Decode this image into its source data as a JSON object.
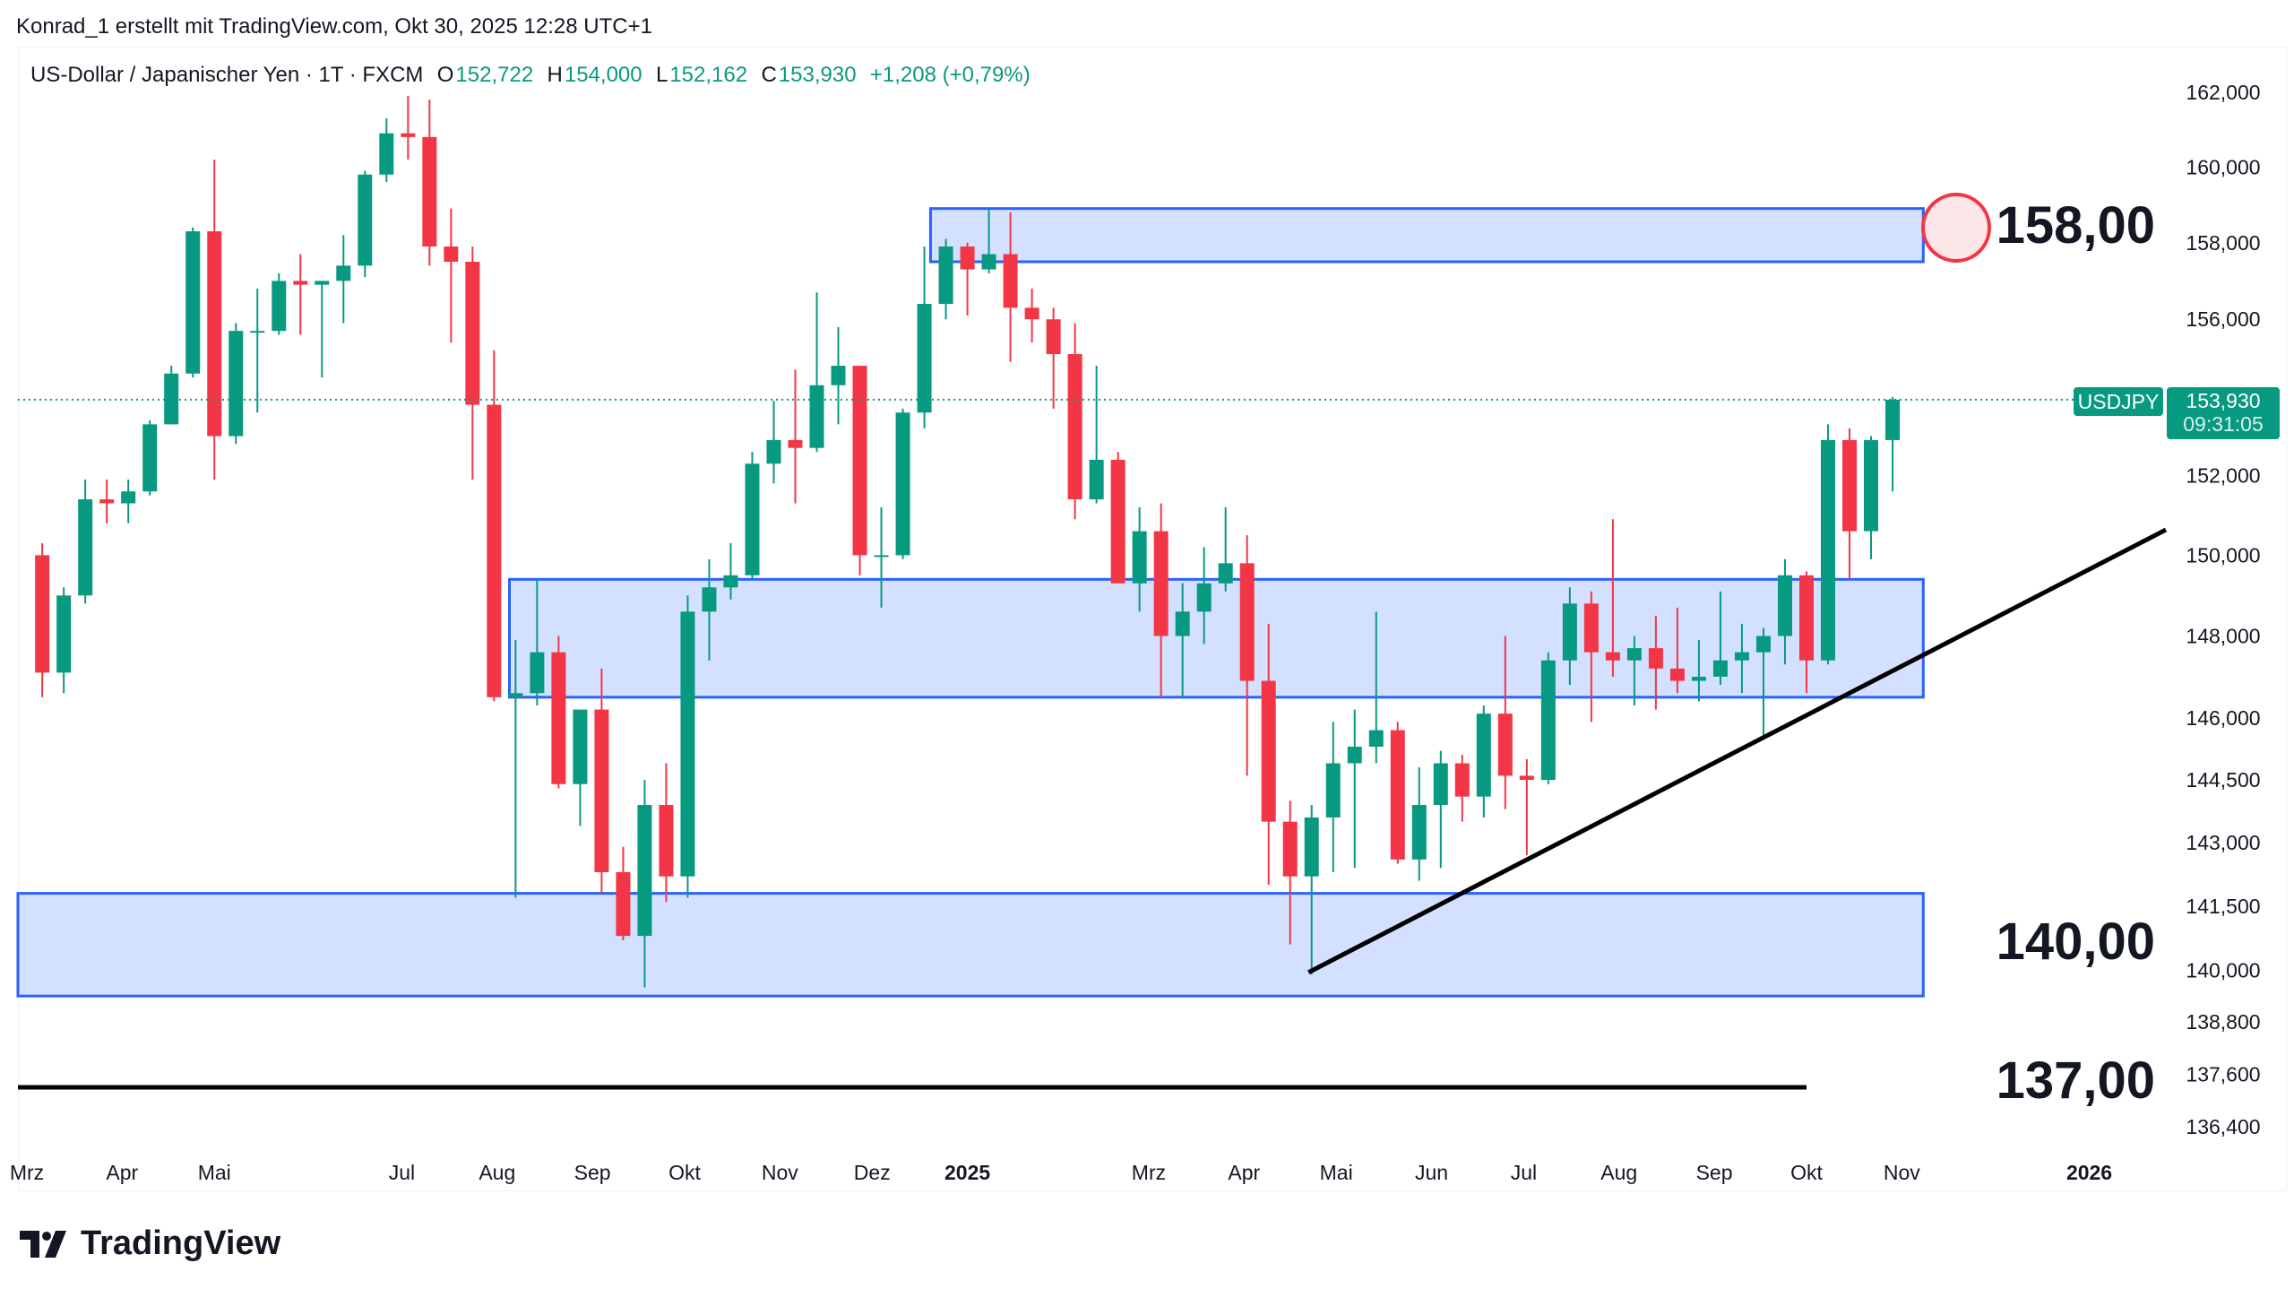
{
  "header": {
    "credit": "Konrad_1 erstellt mit TradingView.com, Okt 30, 2025 12:28 UTC+1"
  },
  "legend": {
    "symbol": "US-Dollar / Japanischer Yen · 1T · FXCM",
    "o_label": "O",
    "o": "152,722",
    "h_label": "H",
    "h": "154,000",
    "l_label": "L",
    "l": "152,162",
    "c_label": "C",
    "c": "153,930",
    "change": "+1,208 (+0,79%)"
  },
  "price_tag": {
    "symbol": "USDJPY",
    "price": "153,930",
    "countdown": "09:31:05",
    "color": "#089981"
  },
  "annotations": {
    "level_158": "158,00",
    "level_140": "140,00",
    "level_137": "137,00"
  },
  "footer": {
    "brand": "TradingView"
  },
  "colors": {
    "up": "#089981",
    "down": "#F23645",
    "zone": "#2962FF"
  },
  "chart_data": {
    "type": "candlestick",
    "title": "US-Dollar / Japanischer Yen · 1T · FXCM",
    "scale": "log",
    "ylim": [
      136.0,
      163.0
    ],
    "y_ticks": [
      {
        "v": 162,
        "label": "162,000"
      },
      {
        "v": 160,
        "label": "160,000"
      },
      {
        "v": 158,
        "label": "158,000"
      },
      {
        "v": 156,
        "label": "156,000"
      },
      {
        "v": 152,
        "label": "152,000"
      },
      {
        "v": 150,
        "label": "150,000"
      },
      {
        "v": 148,
        "label": "148,000"
      },
      {
        "v": 146,
        "label": "146,000"
      },
      {
        "v": 144.5,
        "label": "144,500"
      },
      {
        "v": 143,
        "label": "143,000"
      },
      {
        "v": 141.5,
        "label": "141,500"
      },
      {
        "v": 140,
        "label": "140,000"
      },
      {
        "v": 138.8,
        "label": "138,800"
      },
      {
        "v": 137.6,
        "label": "137,600"
      },
      {
        "v": 136.4,
        "label": "136,400"
      }
    ],
    "x_ticks": [
      {
        "d": "2024-03-01",
        "label": "Mrz",
        "bold": false
      },
      {
        "d": "2024-04-01",
        "label": "Apr",
        "bold": false
      },
      {
        "d": "2024-05-01",
        "label": "Mai",
        "bold": false
      },
      {
        "d": "2024-07-01",
        "label": "Jul",
        "bold": false
      },
      {
        "d": "2024-08-01",
        "label": "Aug",
        "bold": false
      },
      {
        "d": "2024-09-01",
        "label": "Sep",
        "bold": false
      },
      {
        "d": "2024-10-01",
        "label": "Okt",
        "bold": false
      },
      {
        "d": "2024-11-01",
        "label": "Nov",
        "bold": false
      },
      {
        "d": "2024-12-01",
        "label": "Dez",
        "bold": false
      },
      {
        "d": "2025-01-01",
        "label": "2025",
        "bold": true
      },
      {
        "d": "2025-03-01",
        "label": "Mrz",
        "bold": false
      },
      {
        "d": "2025-04-01",
        "label": "Apr",
        "bold": false
      },
      {
        "d": "2025-05-01",
        "label": "Mai",
        "bold": false
      },
      {
        "d": "2025-06-01",
        "label": "Jun",
        "bold": false
      },
      {
        "d": "2025-07-01",
        "label": "Jul",
        "bold": false
      },
      {
        "d": "2025-08-01",
        "label": "Aug",
        "bold": false
      },
      {
        "d": "2025-09-01",
        "label": "Sep",
        "bold": false
      },
      {
        "d": "2025-10-01",
        "label": "Okt",
        "bold": false
      },
      {
        "d": "2025-11-01",
        "label": "Nov",
        "bold": false
      },
      {
        "d": "2026-01-01",
        "label": "2026",
        "bold": true
      }
    ],
    "candles_start": "2024-03-04",
    "candle_interval_days": 7,
    "ohlc": [
      [
        150.0,
        150.3,
        146.5,
        147.1
      ],
      [
        147.1,
        149.2,
        146.6,
        149.0
      ],
      [
        149.0,
        151.9,
        148.8,
        151.4
      ],
      [
        151.4,
        151.9,
        150.8,
        151.3
      ],
      [
        151.3,
        151.9,
        150.8,
        151.6
      ],
      [
        151.6,
        153.4,
        151.5,
        153.3
      ],
      [
        153.3,
        154.8,
        153.3,
        154.6
      ],
      [
        154.6,
        158.4,
        154.5,
        158.3
      ],
      [
        158.3,
        160.2,
        151.9,
        153.0
      ],
      [
        153.0,
        155.9,
        152.8,
        155.7
      ],
      [
        155.7,
        156.8,
        153.6,
        155.7
      ],
      [
        155.7,
        157.2,
        155.6,
        157.0
      ],
      [
        157.0,
        157.7,
        155.6,
        156.9
      ],
      [
        156.9,
        157.0,
        154.5,
        157.0
      ],
      [
        157.0,
        158.2,
        155.9,
        157.4
      ],
      [
        157.4,
        159.9,
        157.1,
        159.8
      ],
      [
        159.8,
        161.3,
        159.6,
        160.9
      ],
      [
        160.9,
        161.9,
        160.2,
        160.8
      ],
      [
        160.8,
        161.8,
        157.4,
        157.9
      ],
      [
        157.9,
        158.9,
        155.4,
        157.5
      ],
      [
        157.5,
        157.9,
        151.9,
        153.8
      ],
      [
        153.8,
        155.2,
        146.4,
        146.5
      ],
      [
        146.5,
        147.9,
        141.7,
        146.6
      ],
      [
        146.6,
        149.4,
        146.3,
        147.6
      ],
      [
        147.6,
        148.0,
        144.3,
        144.4
      ],
      [
        144.4,
        146.2,
        143.4,
        146.2
      ],
      [
        146.2,
        147.2,
        141.8,
        142.3
      ],
      [
        142.3,
        142.9,
        140.7,
        140.8
      ],
      [
        140.8,
        144.5,
        139.6,
        143.9
      ],
      [
        143.9,
        144.9,
        141.6,
        142.2
      ],
      [
        142.2,
        149.0,
        141.7,
        148.6
      ],
      [
        148.6,
        149.9,
        147.4,
        149.2
      ],
      [
        149.2,
        150.3,
        148.9,
        149.5
      ],
      [
        149.5,
        152.6,
        149.4,
        152.3
      ],
      [
        152.3,
        153.9,
        151.8,
        152.9
      ],
      [
        152.9,
        154.7,
        151.3,
        152.7
      ],
      [
        152.7,
        156.7,
        152.6,
        154.3
      ],
      [
        154.3,
        155.8,
        153.3,
        154.8
      ],
      [
        154.8,
        154.8,
        149.5,
        150.0
      ],
      [
        150.0,
        151.2,
        148.7,
        150.0
      ],
      [
        150.0,
        153.7,
        149.9,
        153.6
      ],
      [
        153.6,
        157.9,
        153.2,
        156.4
      ],
      [
        156.4,
        158.1,
        156.0,
        157.9
      ],
      [
        157.9,
        158.0,
        156.1,
        157.3
      ],
      [
        157.3,
        158.9,
        157.2,
        157.7
      ],
      [
        157.7,
        158.8,
        154.9,
        156.3
      ],
      [
        156.3,
        156.8,
        155.4,
        156.0
      ],
      [
        156.0,
        156.3,
        153.7,
        155.1
      ],
      [
        155.1,
        155.9,
        150.9,
        151.4
      ],
      [
        151.4,
        154.8,
        151.3,
        152.4
      ],
      [
        152.4,
        152.6,
        149.3,
        149.3
      ],
      [
        149.3,
        151.2,
        148.6,
        150.6
      ],
      [
        150.6,
        151.3,
        146.5,
        148.0
      ],
      [
        148.0,
        149.3,
        146.5,
        148.6
      ],
      [
        148.6,
        150.2,
        147.8,
        149.3
      ],
      [
        149.3,
        151.2,
        149.1,
        149.8
      ],
      [
        149.8,
        150.5,
        144.6,
        146.9
      ],
      [
        146.9,
        148.3,
        142.0,
        143.5
      ],
      [
        143.5,
        144.0,
        140.6,
        142.2
      ],
      [
        142.2,
        143.9,
        139.9,
        143.6
      ],
      [
        143.6,
        145.9,
        142.3,
        144.9
      ],
      [
        144.9,
        146.2,
        142.4,
        145.3
      ],
      [
        145.3,
        148.6,
        144.9,
        145.7
      ],
      [
        145.7,
        145.9,
        142.5,
        142.6
      ],
      [
        142.6,
        144.8,
        142.1,
        143.9
      ],
      [
        143.9,
        145.2,
        142.4,
        144.9
      ],
      [
        144.9,
        145.1,
        143.5,
        144.1
      ],
      [
        144.1,
        146.3,
        143.6,
        146.1
      ],
      [
        146.1,
        148.0,
        143.8,
        144.6
      ],
      [
        144.6,
        145.0,
        142.7,
        144.5
      ],
      [
        144.5,
        147.6,
        144.4,
        147.4
      ],
      [
        147.4,
        149.2,
        146.8,
        148.8
      ],
      [
        148.8,
        149.1,
        145.9,
        147.6
      ],
      [
        147.6,
        150.9,
        147.0,
        147.4
      ],
      [
        147.4,
        148.0,
        146.3,
        147.7
      ],
      [
        147.7,
        148.5,
        146.2,
        147.2
      ],
      [
        147.2,
        148.7,
        146.6,
        146.9
      ],
      [
        146.9,
        147.9,
        146.4,
        147.0
      ],
      [
        147.0,
        149.1,
        146.8,
        147.4
      ],
      [
        147.4,
        148.3,
        146.6,
        147.6
      ],
      [
        147.6,
        148.2,
        145.5,
        148.0
      ],
      [
        148.0,
        149.9,
        147.3,
        149.5
      ],
      [
        149.5,
        149.6,
        146.6,
        147.4
      ],
      [
        147.4,
        153.3,
        147.3,
        152.9
      ],
      [
        152.9,
        153.2,
        149.4,
        150.6
      ],
      [
        150.6,
        153.0,
        149.9,
        152.9
      ],
      [
        152.9,
        154.0,
        151.6,
        153.93
      ]
    ],
    "zones": [
      {
        "name": "resistance-zone-158",
        "from": "2024-12-20",
        "to": "2025-11-08",
        "low": 157.5,
        "high": 158.9
      },
      {
        "name": "middle-zone",
        "from": "2024-08-05",
        "to": "2025-11-08",
        "low": 146.5,
        "high": 149.4
      },
      {
        "name": "support-zone-140",
        "from": "2024-02-27",
        "to": "2025-11-08",
        "low": 139.4,
        "high": 141.8
      }
    ],
    "trendline": {
      "from": {
        "d": "2025-04-22",
        "p": 139.95
      },
      "to": {
        "d": "2026-01-01",
        "p": 150.6
      }
    },
    "hline": {
      "p": 137.3,
      "from": "2024-02-27",
      "to": "2025-10-01"
    },
    "last_price": 153.93
  }
}
